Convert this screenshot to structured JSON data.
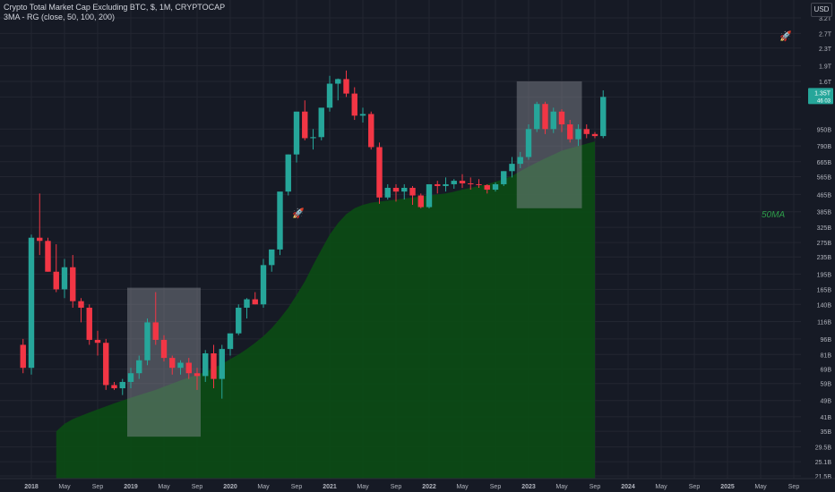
{
  "header": {
    "title": "Crypto Total Market Cap Excluding BTC, $, 1M, CRYPTOCAP",
    "indicator": "3MA - RG (close, 50, 100, 200)"
  },
  "currency_button": "USD",
  "ma_label": "50MA",
  "price_tags": {
    "last": "1.35T",
    "secondary": "46 03"
  },
  "colors": {
    "background": "#161a25",
    "up": "#26a69a",
    "down": "#f23645",
    "ma_fill": "#0b4d14",
    "highlight_box": "#8a8d96",
    "grid": "#232631",
    "rocket": "#26a69a"
  },
  "icons": [
    "rocket-icon-top-right",
    "rocket-icon-middle"
  ],
  "chart_data": {
    "type": "candlestick",
    "interval": "1M",
    "scale": "log",
    "ylim": [
      20.5,
      3500
    ],
    "y_unit": "B",
    "y_ticks": [
      {
        "v": 3200,
        "label": "3.2T"
      },
      {
        "v": 2700,
        "label": "2.7T"
      },
      {
        "v": 2300,
        "label": "2.3T"
      },
      {
        "v": 1900,
        "label": "1.9T"
      },
      {
        "v": 1600,
        "label": "1.6T"
      },
      {
        "v": 1350,
        "label": "1.35T"
      },
      {
        "v": 950,
        "label": "950B"
      },
      {
        "v": 790,
        "label": "790B"
      },
      {
        "v": 665,
        "label": "665B"
      },
      {
        "v": 565,
        "label": "565B"
      },
      {
        "v": 465,
        "label": "465B"
      },
      {
        "v": 385,
        "label": "385B"
      },
      {
        "v": 325,
        "label": "325B"
      },
      {
        "v": 275,
        "label": "275B"
      },
      {
        "v": 235,
        "label": "235B"
      },
      {
        "v": 195,
        "label": "195B"
      },
      {
        "v": 165,
        "label": "165B"
      },
      {
        "v": 140,
        "label": "140B"
      },
      {
        "v": 116,
        "label": "116B"
      },
      {
        "v": 96,
        "label": "96B"
      },
      {
        "v": 81,
        "label": "81B"
      },
      {
        "v": 69,
        "label": "69B"
      },
      {
        "v": 59,
        "label": "59B"
      },
      {
        "v": 49,
        "label": "49B"
      },
      {
        "v": 41,
        "label": "41B"
      },
      {
        "v": 35,
        "label": "35B"
      },
      {
        "v": 29.5,
        "label": "29.5B"
      },
      {
        "v": 25.1,
        "label": "25.1B"
      },
      {
        "v": 21.5,
        "label": "21.5B"
      }
    ],
    "x_ticks": [
      {
        "m": 0,
        "label": "2018"
      },
      {
        "m": 4,
        "label": "May"
      },
      {
        "m": 8,
        "label": "Sep"
      },
      {
        "m": 12,
        "label": "2019"
      },
      {
        "m": 16,
        "label": "May"
      },
      {
        "m": 20,
        "label": "Sep"
      },
      {
        "m": 24,
        "label": "2020"
      },
      {
        "m": 28,
        "label": "May"
      },
      {
        "m": 32,
        "label": "Sep"
      },
      {
        "m": 36,
        "label": "2021"
      },
      {
        "m": 40,
        "label": "May"
      },
      {
        "m": 44,
        "label": "Sep"
      },
      {
        "m": 48,
        "label": "2022"
      },
      {
        "m": 52,
        "label": "May"
      },
      {
        "m": 56,
        "label": "Sep"
      },
      {
        "m": 60,
        "label": "2023"
      },
      {
        "m": 64,
        "label": "May"
      },
      {
        "m": 68,
        "label": "Sep"
      },
      {
        "m": 72,
        "label": "2024"
      },
      {
        "m": 76,
        "label": "May"
      },
      {
        "m": 80,
        "label": "Sep"
      },
      {
        "m": 84,
        "label": "2025"
      },
      {
        "m": 88,
        "label": "May"
      },
      {
        "m": 92,
        "label": "Sep"
      }
    ],
    "candles_start_month": -1,
    "candles_ohlc": [
      [
        90,
        96,
        66,
        70
      ],
      [
        70,
        300,
        65,
        290
      ],
      [
        290,
        470,
        240,
        280
      ],
      [
        280,
        290,
        200,
        200
      ],
      [
        200,
        270,
        160,
        165
      ],
      [
        165,
        230,
        150,
        210
      ],
      [
        210,
        240,
        135,
        145
      ],
      [
        145,
        150,
        115,
        135
      ],
      [
        135,
        140,
        90,
        95
      ],
      [
        95,
        105,
        80,
        92
      ],
      [
        92,
        96,
        55,
        58
      ],
      [
        58,
        60,
        55,
        56
      ],
      [
        56,
        62,
        52,
        60
      ],
      [
        60,
        70,
        56,
        66
      ],
      [
        66,
        80,
        62,
        76
      ],
      [
        76,
        120,
        72,
        115
      ],
      [
        115,
        160,
        90,
        95
      ],
      [
        95,
        100,
        75,
        78
      ],
      [
        78,
        80,
        65,
        70
      ],
      [
        70,
        76,
        65,
        74
      ],
      [
        74,
        78,
        62,
        66
      ],
      [
        66,
        70,
        55,
        64
      ],
      [
        64,
        85,
        60,
        82
      ],
      [
        82,
        90,
        56,
        62
      ],
      [
        62,
        90,
        50,
        86
      ],
      [
        86,
        100,
        80,
        102
      ],
      [
        102,
        140,
        100,
        135
      ],
      [
        135,
        150,
        120,
        148
      ],
      [
        148,
        160,
        140,
        140
      ],
      [
        140,
        230,
        135,
        215
      ],
      [
        215,
        250,
        200,
        255
      ],
      [
        255,
        400,
        240,
        480
      ],
      [
        480,
        720,
        460,
        720
      ],
      [
        720,
        1000,
        660,
        1150
      ],
      [
        1150,
        1300,
        840,
        860
      ],
      [
        860,
        950,
        760,
        870
      ],
      [
        870,
        1150,
        840,
        1200
      ],
      [
        1200,
        1700,
        1150,
        1560
      ],
      [
        1560,
        1650,
        1300,
        1640
      ],
      [
        1640,
        1800,
        1350,
        1400
      ],
      [
        1400,
        1500,
        1050,
        1100
      ],
      [
        1100,
        1200,
        1020,
        1120
      ],
      [
        1120,
        1150,
        760,
        780
      ],
      [
        780,
        820,
        420,
        450
      ],
      [
        450,
        520,
        440,
        500
      ],
      [
        500,
        520,
        430,
        480
      ],
      [
        480,
        520,
        440,
        500
      ],
      [
        500,
        510,
        415,
        460
      ],
      [
        460,
        470,
        400,
        405
      ],
      [
        405,
        500,
        400,
        520
      ],
      [
        520,
        540,
        470,
        510
      ],
      [
        510,
        560,
        480,
        520
      ],
      [
        520,
        550,
        495,
        540
      ],
      [
        540,
        580,
        500,
        525
      ],
      [
        525,
        560,
        490,
        520
      ],
      [
        520,
        550,
        500,
        515
      ],
      [
        515,
        520,
        470,
        490
      ],
      [
        490,
        530,
        480,
        520
      ],
      [
        520,
        600,
        510,
        600
      ],
      [
        600,
        700,
        560,
        650
      ],
      [
        650,
        740,
        620,
        700
      ],
      [
        700,
        1000,
        680,
        950
      ],
      [
        950,
        1280,
        920,
        1250
      ],
      [
        1250,
        1280,
        900,
        950
      ],
      [
        950,
        1200,
        910,
        1150
      ],
      [
        1150,
        1180,
        920,
        1000
      ],
      [
        1000,
        1050,
        820,
        850
      ],
      [
        850,
        1000,
        790,
        950
      ],
      [
        950,
        1000,
        860,
        900
      ],
      [
        900,
        920,
        860,
        880
      ],
      [
        880,
        1450,
        860,
        1350
      ]
    ],
    "ma50_start_month": 3,
    "ma50": [
      35,
      38,
      40,
      41.5,
      43,
      44.5,
      46,
      47.5,
      49,
      50.5,
      52,
      53.5,
      55,
      57,
      59,
      61,
      63,
      65,
      67,
      70,
      73,
      77,
      81,
      86,
      92,
      99,
      108,
      120,
      135,
      155,
      180,
      215,
      255,
      300,
      340,
      375,
      400,
      415,
      425,
      430,
      435,
      440,
      445,
      450,
      455,
      460,
      465,
      470,
      480,
      490,
      500,
      510,
      520,
      535,
      550,
      570,
      600,
      630,
      660,
      690,
      720,
      750,
      770,
      790,
      810,
      830
    ],
    "highlight_boxes": [
      {
        "from_month": 12,
        "to_month": 20,
        "low": 33,
        "high": 168
      },
      {
        "from_month": 59,
        "to_month": 66,
        "low": 400,
        "high": 1600
      }
    ]
  }
}
